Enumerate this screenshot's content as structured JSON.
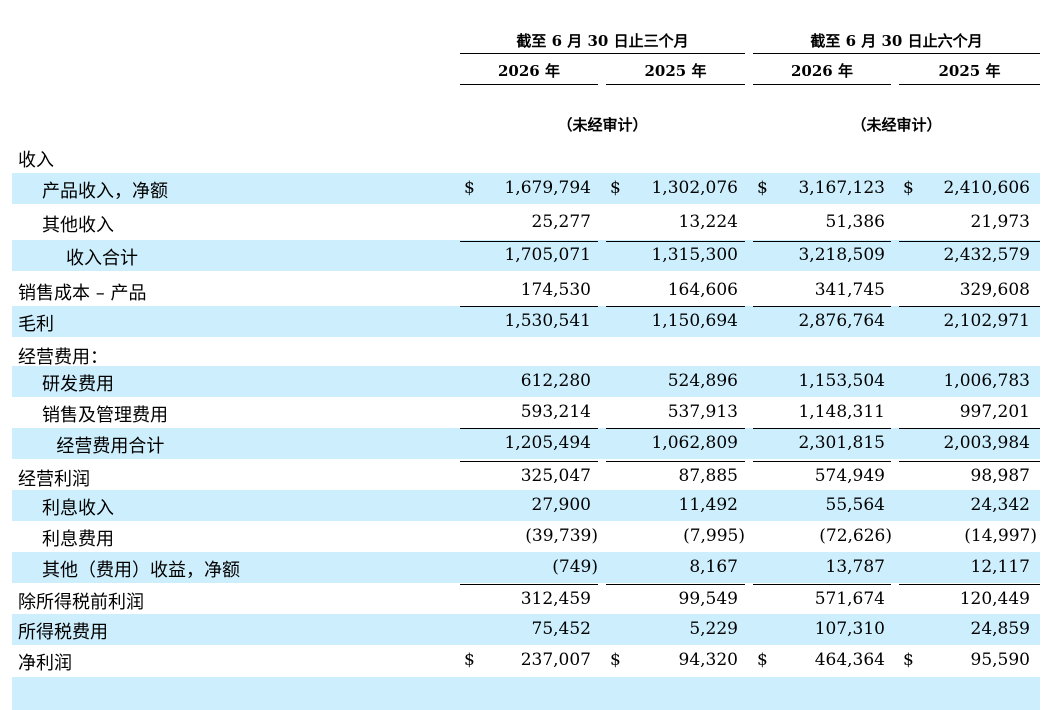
{
  "header": {
    "three_months": "截至 6 月 30 日止三个月",
    "six_months": "截至 6 月 30 日止六个月",
    "years": [
      "2026 年",
      "2025 年",
      "2026 年",
      "2025 年"
    ],
    "unaudited": "（未经审计）"
  },
  "rows": [
    {
      "label": "收入",
      "indent": 0,
      "shaded": false,
      "values": [
        "",
        "",
        "",
        ""
      ],
      "dollar": false
    },
    {
      "label": "产品收入，净额",
      "indent": 1,
      "shaded": true,
      "values": [
        "1,679,794",
        "1,302,076",
        "3,167,123",
        "2,410,606"
      ],
      "dollar": true
    },
    {
      "label": "其他收入",
      "indent": 1,
      "shaded": false,
      "values": [
        "25,277",
        "13,224",
        "51,386",
        "21,973"
      ],
      "dollar": false
    },
    {
      "label": "收入合计",
      "indent": 2,
      "shaded": true,
      "values": [
        "1,705,071",
        "1,315,300",
        "3,218,509",
        "2,432,579"
      ],
      "dollar": false
    },
    {
      "label": "销售成本 – 产品",
      "indent": 0,
      "shaded": false,
      "values": [
        "174,530",
        "164,606",
        "341,745",
        "329,608"
      ],
      "dollar": false
    },
    {
      "label": "毛利",
      "indent": 0,
      "shaded": true,
      "values": [
        "1,530,541",
        "1,150,694",
        "2,876,764",
        "2,102,971"
      ],
      "dollar": false
    },
    {
      "label": "经营费用：",
      "indent": 0,
      "shaded": false,
      "values": [
        "",
        "",
        "",
        ""
      ],
      "dollar": false
    },
    {
      "label": "研发费用",
      "indent": 1,
      "shaded": true,
      "values": [
        "612,280",
        "524,896",
        "1,153,504",
        "1,006,783"
      ],
      "dollar": false
    },
    {
      "label": "销售及管理费用",
      "indent": 1,
      "shaded": false,
      "values": [
        "593,214",
        "537,913",
        "1,148,311",
        "997,201"
      ],
      "dollar": false
    },
    {
      "label": "经营费用合计",
      "indent": 1.6,
      "shaded": true,
      "values": [
        "1,205,494",
        "1,062,809",
        "2,301,815",
        "2,003,984"
      ],
      "dollar": false
    },
    {
      "label": "经营利润",
      "indent": 0,
      "shaded": false,
      "values": [
        "325,047",
        "87,885",
        "574,949",
        "98,987"
      ],
      "dollar": false
    },
    {
      "label": "利息收入",
      "indent": 1,
      "shaded": true,
      "values": [
        "27,900",
        "11,492",
        "55,564",
        "24,342"
      ],
      "dollar": false
    },
    {
      "label": "利息费用",
      "indent": 1,
      "shaded": false,
      "values": [
        "(39,739)",
        "(7,995)",
        "(72,626)",
        "(14,997)"
      ],
      "dollar": false
    },
    {
      "label": "其他（费用）收益，净额",
      "indent": 1,
      "shaded": true,
      "values": [
        "(749)",
        "8,167",
        "13,787",
        "12,117"
      ],
      "dollar": false
    },
    {
      "label": "除所得税前利润",
      "indent": 0,
      "shaded": false,
      "values": [
        "312,459",
        "99,549",
        "571,674",
        "120,449"
      ],
      "dollar": false
    },
    {
      "label": "所得税费用",
      "indent": 0,
      "shaded": true,
      "values": [
        "75,452",
        "5,229",
        "107,310",
        "24,859"
      ],
      "dollar": false
    },
    {
      "label": "净利润",
      "indent": 0,
      "shaded": false,
      "values": [
        "237,007",
        "94,320",
        "464,364",
        "95,590"
      ],
      "dollar": true
    }
  ],
  "currency_symbol": "$"
}
